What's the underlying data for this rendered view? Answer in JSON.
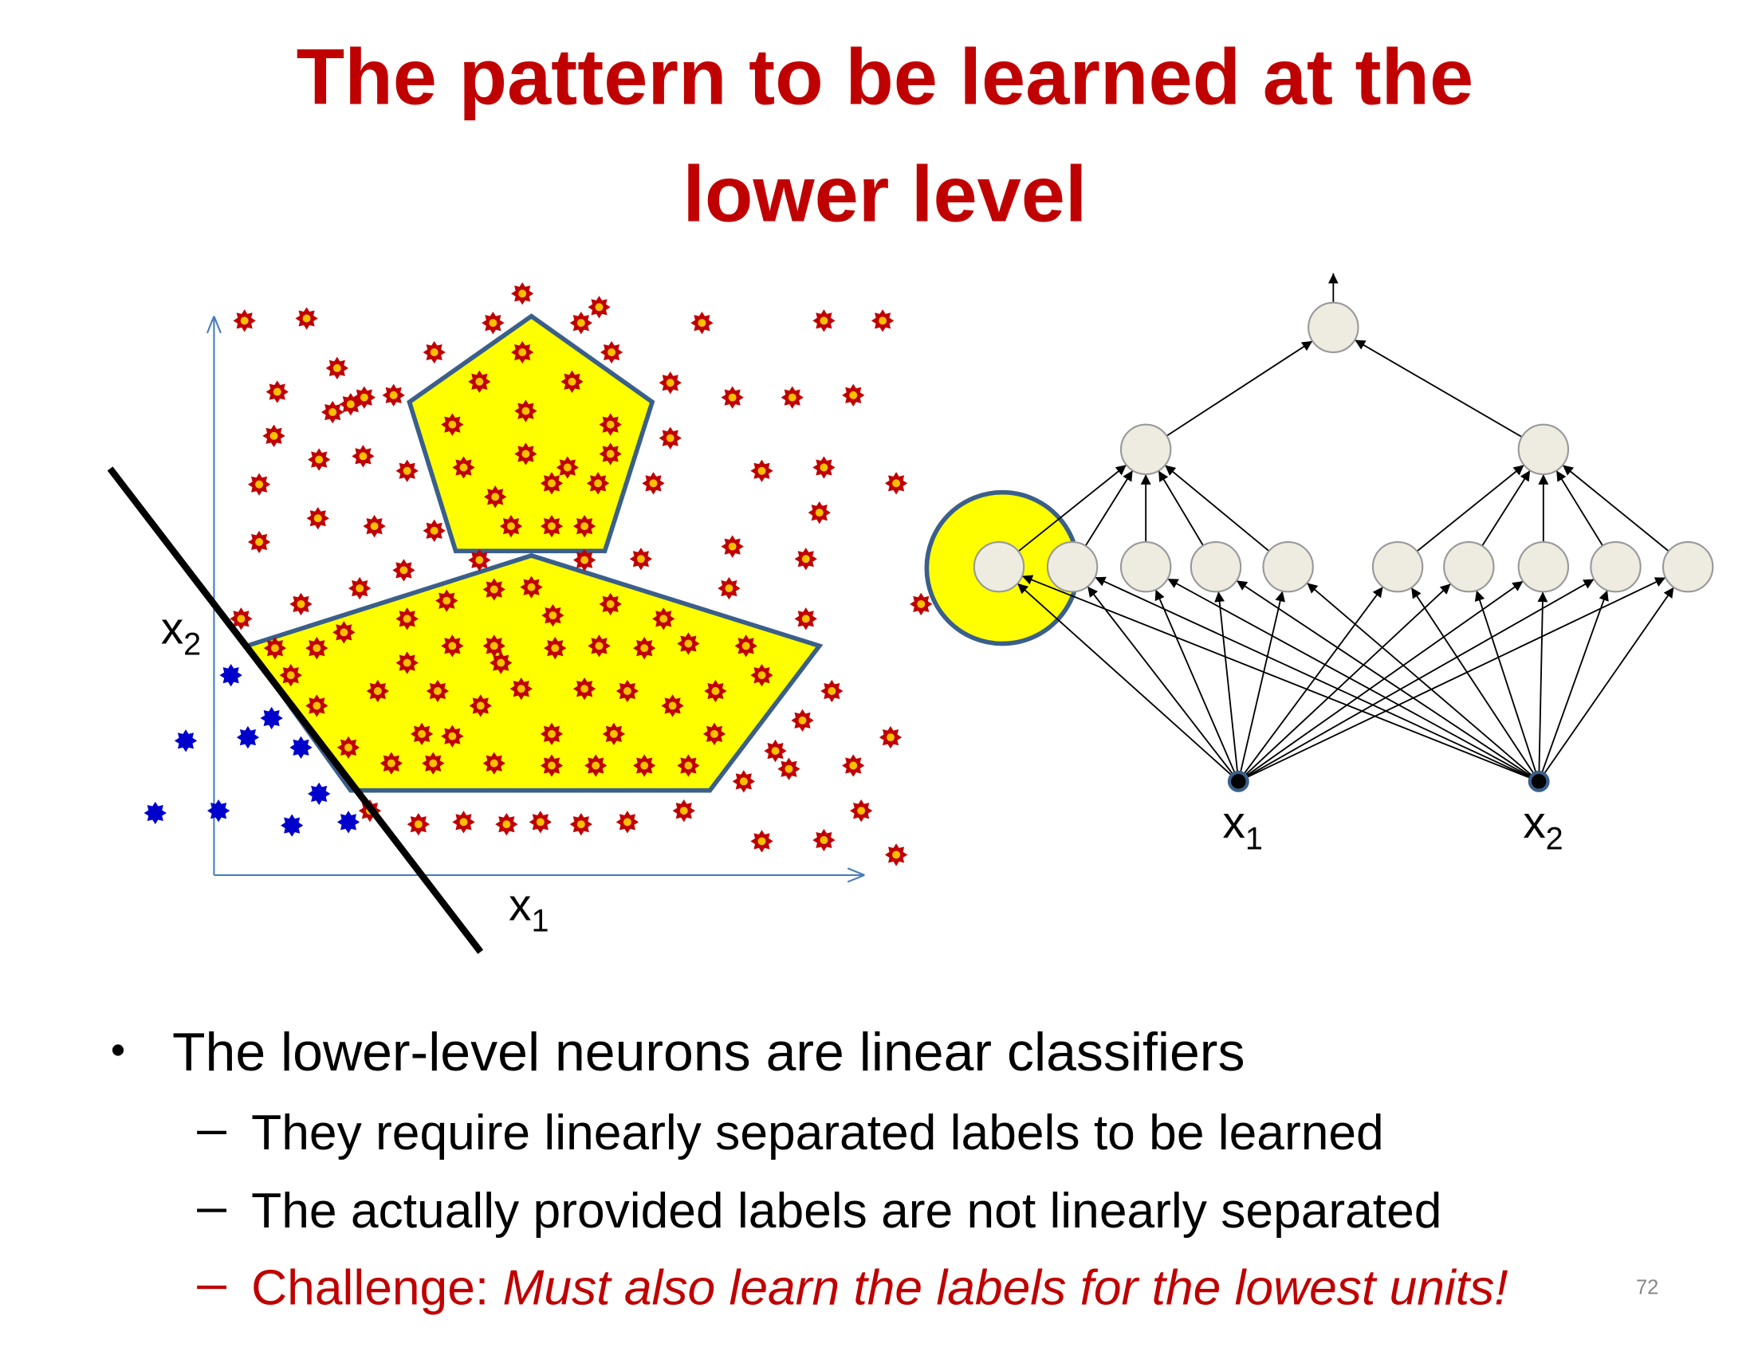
{
  "title_lines": [
    "The pattern to be learned at the",
    "lower level"
  ],
  "plot_axis_labels": [
    {
      "label": "x",
      "subscript": "1"
    },
    {
      "label": "x",
      "subscript": "2"
    }
  ],
  "network_input_labels": [
    {
      "label": "x",
      "subscript": "1"
    },
    {
      "label": "x",
      "subscript": "2"
    }
  ],
  "bullets": [
    {
      "text": "The lower-level neurons are linear classifiers",
      "sub": [
        {
          "text": "They require linearly separated labels to be learned"
        },
        {
          "text": "The actually provided labels are not linearly separated"
        },
        {
          "prefix": "Challenge: ",
          "emphasis": "Must also learn the labels for the lowest units!"
        }
      ]
    }
  ],
  "page_number": "72"
}
